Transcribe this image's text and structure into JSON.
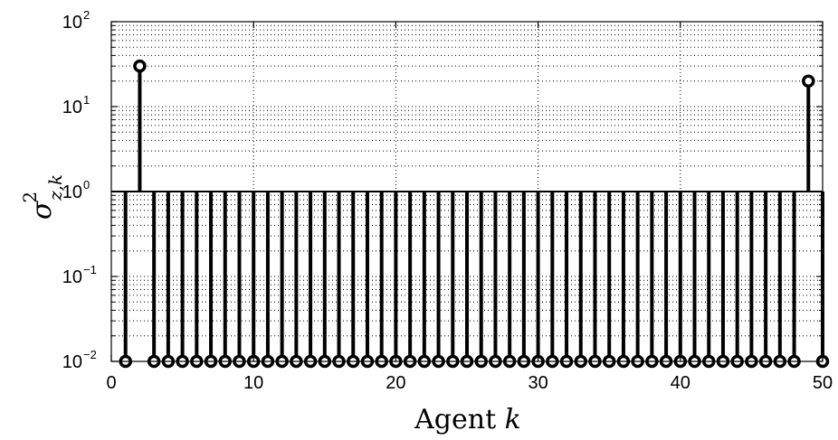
{
  "chart_data": {
    "type": "stem",
    "title": "",
    "xlabel": "Agent",
    "xlabel_var": "k",
    "ylabel": {
      "base": "σ",
      "superscript": "2",
      "subscript": "z,k"
    },
    "x_scale": "linear",
    "y_scale": "log",
    "xlim": [
      0,
      50
    ],
    "ylim": [
      0.01,
      100
    ],
    "baseline": 1,
    "x_ticks": [
      0,
      10,
      20,
      30,
      40,
      50
    ],
    "x_tick_labels": [
      "0",
      "10",
      "20",
      "30",
      "40",
      "50"
    ],
    "y_ticks": [
      0.01,
      0.1,
      1,
      10,
      100
    ],
    "y_tick_labels": [
      {
        "base": "10",
        "exp": "−2"
      },
      {
        "base": "10",
        "exp": "−1"
      },
      {
        "base": "10",
        "exp": "0"
      },
      {
        "base": "10",
        "exp": "1"
      },
      {
        "base": "10",
        "exp": "2"
      }
    ],
    "grid": true,
    "legend": "none",
    "series": [
      {
        "x": [
          1,
          2,
          3,
          4,
          5,
          6,
          7,
          8,
          9,
          10,
          11,
          12,
          13,
          14,
          15,
          16,
          17,
          18,
          19,
          20,
          21,
          22,
          23,
          24,
          25,
          26,
          27,
          28,
          29,
          30,
          31,
          32,
          33,
          34,
          35,
          36,
          37,
          38,
          39,
          40,
          41,
          42,
          43,
          44,
          45,
          46,
          47,
          48,
          49,
          50
        ],
        "y": [
          0.01,
          30,
          0.01,
          0.01,
          0.01,
          0.01,
          0.01,
          0.01,
          0.01,
          0.01,
          0.01,
          0.01,
          0.01,
          0.01,
          0.01,
          0.01,
          0.01,
          0.01,
          0.01,
          0.01,
          0.01,
          0.01,
          0.01,
          0.01,
          0.01,
          0.01,
          0.01,
          0.01,
          0.01,
          0.01,
          0.01,
          0.01,
          0.01,
          0.01,
          0.01,
          0.01,
          0.01,
          0.01,
          0.01,
          0.01,
          0.01,
          0.01,
          0.01,
          0.01,
          0.01,
          0.01,
          0.01,
          0.01,
          20,
          0.01
        ],
        "color": "#000000",
        "marker": "circle"
      }
    ]
  }
}
